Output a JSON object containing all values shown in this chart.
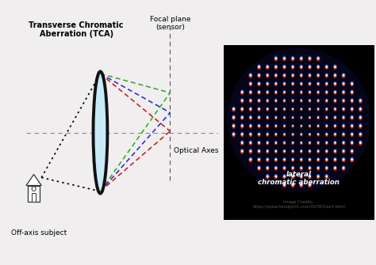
{
  "bg_color": "#f0eeee",
  "left_panel": {
    "tca_title": "Transverse Chromatic\nAberration (TCA)",
    "focal_plane_label": "Focal plane\n(sensor)",
    "optical_axes_label": "Optical Axes",
    "off_axis_label": "Off-axis subject",
    "lens_fill": "#c8eaf8",
    "lens_edge": "#111111",
    "green": "#22aa22",
    "blue": "#2222cc",
    "red": "#cc1111",
    "axis_color": "#888888",
    "focal_color": "#555555",
    "house_color": "#333333",
    "dot_color": "#222222"
  },
  "right_panel": {
    "bg_color": "#000000",
    "circle_bg": "#05051a",
    "label_text": "lateral\nchromatic aberration",
    "credit_text": "Image Credits:\nhttps://www.handprint.com/ASTRO/ae4.html"
  }
}
